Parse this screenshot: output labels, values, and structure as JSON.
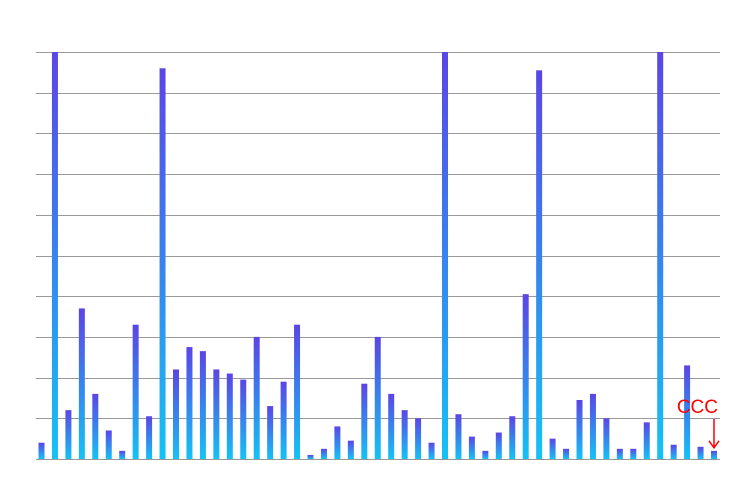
{
  "chart_data": {
    "type": "bar",
    "title": "",
    "xlabel": "",
    "ylabel": "",
    "ylim": [
      0,
      100
    ],
    "grid": true,
    "gradient": {
      "top": "#5b45e6",
      "bottom": "#14c2f5"
    },
    "gridline_color": "#999999",
    "annotation": {
      "label": "CCC",
      "target_index": 50,
      "color": "#ff0000"
    },
    "values": [
      4,
      100,
      12,
      37,
      16,
      7,
      2,
      33,
      10.5,
      96,
      22,
      27.5,
      26.5,
      22,
      21,
      19.5,
      30,
      13,
      19,
      33,
      1,
      2.5,
      8,
      4.5,
      18.5,
      30,
      16,
      12,
      10,
      4,
      100,
      11,
      5.5,
      2,
      6.5,
      10.5,
      40.5,
      95.5,
      5,
      2.5,
      14.5,
      16,
      10,
      2.5,
      2.5,
      9,
      100,
      3.5,
      23,
      3,
      2
    ]
  }
}
